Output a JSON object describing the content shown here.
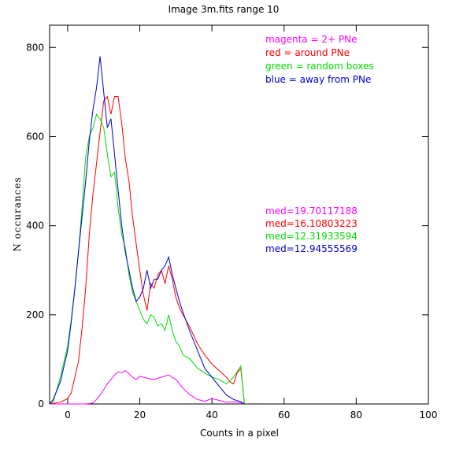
{
  "chart_data": {
    "type": "line",
    "title": "Image 3m.fits   range 10",
    "xlabel": "Counts in a pixel",
    "ylabel": "N occurances",
    "xlim": [
      -5,
      100
    ],
    "ylim": [
      0,
      850
    ],
    "x_ticks": [
      0,
      20,
      40,
      60,
      80,
      100
    ],
    "y_ticks": [
      0,
      200,
      400,
      600,
      800
    ],
    "legend": [
      {
        "text": "magenta = 2+ PNe",
        "color": "#ff00ff"
      },
      {
        "text": "red = around PNe",
        "color": "#ff0000"
      },
      {
        "text": "green = random boxes",
        "color": "#00dd00"
      },
      {
        "text": "blue = away from PNe",
        "color": "#0000cc"
      }
    ],
    "medians": [
      {
        "text": "med=19.70117188",
        "color": "#ff00ff"
      },
      {
        "text": "med=16.10803223",
        "color": "#ff0000"
      },
      {
        "text": "med=12.31933594",
        "color": "#00dd00"
      },
      {
        "text": "med=12.94555569",
        "color": "#0000cc"
      }
    ],
    "series": [
      {
        "color": "#ff00ff",
        "x": [
          -5,
          5,
          7,
          8,
          9,
          10,
          11,
          12,
          13,
          14,
          15,
          16,
          17,
          18,
          19,
          20,
          22,
          24,
          26,
          28,
          30,
          31,
          32,
          34,
          36,
          38,
          40,
          42,
          44,
          46,
          48,
          49
        ],
        "y": [
          0,
          0,
          2,
          10,
          20,
          32,
          45,
          55,
          65,
          72,
          70,
          75,
          68,
          60,
          55,
          62,
          58,
          55,
          60,
          65,
          55,
          45,
          35,
          20,
          10,
          6,
          12,
          8,
          4,
          5,
          3,
          0
        ]
      },
      {
        "color": "#ff0000",
        "x": [
          -5,
          -2,
          0,
          1,
          2,
          3,
          4,
          5,
          6,
          7,
          8,
          9,
          10,
          11,
          12,
          13,
          14,
          15,
          16,
          17,
          18,
          19,
          20,
          21,
          22,
          23,
          24,
          25,
          26,
          27,
          28,
          29,
          30,
          31,
          32,
          34,
          36,
          38,
          40,
          42,
          44,
          45,
          46,
          47,
          48,
          49
        ],
        "y": [
          0,
          4,
          12,
          25,
          60,
          95,
          170,
          260,
          380,
          470,
          540,
          610,
          680,
          690,
          650,
          690,
          690,
          630,
          550,
          500,
          420,
          360,
          300,
          245,
          210,
          270,
          260,
          290,
          300,
          270,
          310,
          280,
          240,
          215,
          200,
          170,
          135,
          110,
          90,
          75,
          60,
          50,
          45,
          70,
          80,
          0
        ]
      },
      {
        "color": "#00dd00",
        "x": [
          -5,
          -4,
          -2,
          0,
          1,
          2,
          3,
          4,
          5,
          6,
          7,
          8,
          9,
          10,
          11,
          12,
          13,
          14,
          15,
          16,
          17,
          18,
          19,
          20,
          21,
          22,
          23,
          24,
          25,
          26,
          27,
          28,
          29,
          30,
          31,
          32,
          34,
          36,
          38,
          40,
          42,
          44,
          46,
          48,
          49
        ],
        "y": [
          0,
          5,
          60,
          130,
          190,
          260,
          340,
          440,
          555,
          600,
          620,
          650,
          640,
          620,
          560,
          510,
          520,
          440,
          380,
          350,
          290,
          250,
          230,
          210,
          190,
          180,
          200,
          195,
          175,
          180,
          165,
          200,
          165,
          140,
          130,
          110,
          100,
          80,
          70,
          60,
          55,
          45,
          60,
          85,
          0
        ]
      },
      {
        "color": "#0000cc",
        "x": [
          -5,
          -4,
          -2,
          0,
          1,
          2,
          3,
          4,
          5,
          6,
          7,
          8,
          9,
          10,
          11,
          12,
          13,
          14,
          15,
          16,
          17,
          18,
          19,
          20,
          21,
          22,
          23,
          24,
          25,
          26,
          27,
          28,
          29,
          30,
          31,
          32,
          34,
          36,
          38,
          40,
          42,
          44,
          46,
          48,
          49
        ],
        "y": [
          0,
          10,
          50,
          120,
          185,
          260,
          340,
          420,
          500,
          590,
          660,
          710,
          780,
          700,
          620,
          640,
          560,
          480,
          400,
          340,
          300,
          260,
          230,
          240,
          260,
          300,
          260,
          280,
          280,
          300,
          310,
          330,
          290,
          260,
          230,
          205,
          160,
          120,
          80,
          60,
          40,
          20,
          10,
          5,
          0
        ]
      }
    ]
  }
}
